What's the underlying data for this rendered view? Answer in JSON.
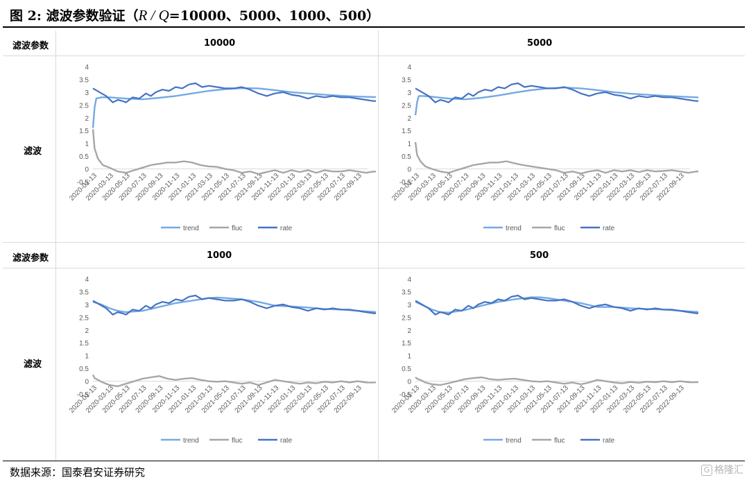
{
  "figure": {
    "title_prefix": "图 2:  滤波参数验证（",
    "title_rq": "R / Q",
    "title_suffix": "=10000、5000、1000、500）"
  },
  "table": {
    "param_label": "滤波参数",
    "row_label": "滤波"
  },
  "source": "数据来源：国泰君安证券研究",
  "watermark": "格隆汇",
  "colors": {
    "trend": "#74a9e1",
    "fluc": "#a6a6a6",
    "rate": "#4472c4",
    "axis": "#d9d9d9",
    "tick": "#595959"
  },
  "chart_data": [
    {
      "type": "line",
      "title": "10000",
      "yticks": [
        "4",
        "3.5",
        "3",
        "2.5",
        "2",
        "1.5",
        "1",
        "0.5",
        "0",
        "-0.5"
      ],
      "ylim": [
        -0.5,
        4
      ],
      "xticks": [
        "2020-01-13",
        "2020-03-13",
        "2020-05-13",
        "2020-07-13",
        "2020-09-13",
        "2020-11-13",
        "2021-01-13",
        "2021-03-13",
        "2021-05-13",
        "2021-07-13",
        "2021-09-13",
        "2021-11-13",
        "2022-01-13",
        "2022-03-13",
        "2022-05-13",
        "2022-07-13",
        "2022-09-13"
      ],
      "legend": [
        "trend",
        "fluc",
        "rate"
      ],
      "series": [
        {
          "name": "trend",
          "x": [
            0,
            0.1,
            0.2,
            0.5,
            1,
            2,
            3,
            4,
            5,
            6,
            7,
            8,
            9,
            10,
            11,
            12,
            13,
            14,
            15,
            16,
            17.6
          ],
          "y": [
            1.6,
            2.4,
            2.75,
            2.8,
            2.8,
            2.75,
            2.72,
            2.78,
            2.85,
            2.95,
            3.05,
            3.12,
            3.16,
            3.15,
            3.08,
            3.0,
            2.95,
            2.9,
            2.86,
            2.83,
            2.8
          ]
        },
        {
          "name": "fluc",
          "x": [
            0,
            0.1,
            0.3,
            0.6,
            1,
            1.5,
            2,
            2.5,
            3,
            3.5,
            4,
            4.5,
            5,
            5.5,
            6,
            6.5,
            7,
            7.5,
            8,
            8.5,
            9,
            9.5,
            10,
            10.5,
            11,
            11.5,
            12,
            12.5,
            13,
            13.5,
            14,
            14.5,
            15,
            15.5,
            16,
            16.5,
            17,
            17.6
          ],
          "y": [
            1.55,
            0.8,
            0.4,
            0.15,
            0.05,
            -0.1,
            -0.15,
            -0.05,
            0.05,
            0.15,
            0.2,
            0.25,
            0.25,
            0.3,
            0.25,
            0.15,
            0.1,
            0.08,
            0.0,
            -0.05,
            -0.15,
            -0.1,
            -0.2,
            -0.12,
            -0.05,
            -0.15,
            -0.05,
            -0.12,
            -0.05,
            -0.15,
            -0.05,
            -0.1,
            -0.1,
            -0.05,
            -0.1,
            -0.15,
            -0.1,
            -0.15
          ]
        },
        {
          "name": "rate",
          "x": [
            0,
            0.4,
            0.8,
            1.2,
            1.5,
            1.8,
            2,
            2.4,
            2.8,
            3.2,
            3.5,
            3.8,
            4.2,
            4.6,
            5,
            5.4,
            5.8,
            6.2,
            6.6,
            7,
            7.5,
            8,
            8.5,
            9,
            9.5,
            10,
            10.5,
            11,
            11.5,
            12,
            12.5,
            13,
            13.5,
            14,
            14.5,
            15,
            15.5,
            16,
            16.5,
            17,
            17.6
          ],
          "y": [
            3.15,
            3.0,
            2.85,
            2.6,
            2.7,
            2.65,
            2.6,
            2.8,
            2.75,
            2.95,
            2.85,
            3.0,
            3.1,
            3.05,
            3.2,
            3.15,
            3.3,
            3.35,
            3.2,
            3.25,
            3.2,
            3.15,
            3.15,
            3.2,
            3.1,
            2.95,
            2.85,
            2.95,
            3.0,
            2.9,
            2.85,
            2.75,
            2.85,
            2.8,
            2.85,
            2.8,
            2.8,
            2.75,
            2.7,
            2.65,
            2.7
          ]
        }
      ]
    },
    {
      "type": "line",
      "title": "5000",
      "yticks": [
        "4",
        "3.5",
        "3",
        "2.5",
        "2",
        "1.5",
        "1",
        "0.5",
        "0",
        "-0.5"
      ],
      "ylim": [
        -0.5,
        4
      ],
      "xticks": [
        "2020-01-13",
        "2020-03-13",
        "2020-05-13",
        "2020-07-13",
        "2020-09-13",
        "2020-11-13",
        "2021-01-13",
        "2021-03-13",
        "2021-05-13",
        "2021-07-13",
        "2021-09-13",
        "2021-11-13",
        "2022-01-13",
        "2022-03-13",
        "2022-05-13",
        "2022-07-13",
        "2022-09-13"
      ],
      "legend": [
        "trend",
        "fluc",
        "rate"
      ],
      "series": [
        {
          "name": "trend",
          "x": [
            0,
            0.1,
            0.2,
            0.5,
            1,
            2,
            3,
            4,
            5,
            6,
            7,
            8,
            9,
            10,
            11,
            12,
            13,
            14,
            15,
            16,
            17.6
          ],
          "y": [
            2.1,
            2.6,
            2.85,
            2.85,
            2.82,
            2.75,
            2.72,
            2.78,
            2.87,
            2.98,
            3.08,
            3.15,
            3.18,
            3.15,
            3.08,
            3.0,
            2.94,
            2.9,
            2.86,
            2.83,
            2.78
          ]
        },
        {
          "name": "fluc",
          "x": [
            0,
            0.1,
            0.3,
            0.6,
            1,
            1.5,
            2,
            2.5,
            3,
            3.5,
            4,
            4.5,
            5,
            5.5,
            6,
            6.5,
            7,
            7.5,
            8,
            8.5,
            9,
            9.5,
            10,
            10.5,
            11,
            11.5,
            12,
            12.5,
            13,
            13.5,
            14,
            14.5,
            15,
            15.5,
            16,
            16.5,
            17,
            17.6
          ],
          "y": [
            1.05,
            0.55,
            0.3,
            0.1,
            0.0,
            -0.1,
            -0.15,
            -0.05,
            0.05,
            0.15,
            0.2,
            0.25,
            0.25,
            0.3,
            0.22,
            0.15,
            0.1,
            0.05,
            0.0,
            -0.05,
            -0.15,
            -0.1,
            -0.18,
            -0.1,
            -0.05,
            -0.15,
            -0.05,
            -0.1,
            -0.05,
            -0.12,
            -0.05,
            -0.1,
            -0.08,
            -0.05,
            -0.1,
            -0.15,
            -0.1,
            -0.12
          ]
        },
        {
          "name": "rate",
          "x": [
            0,
            0.4,
            0.8,
            1.2,
            1.5,
            1.8,
            2,
            2.4,
            2.8,
            3.2,
            3.5,
            3.8,
            4.2,
            4.6,
            5,
            5.4,
            5.8,
            6.2,
            6.6,
            7,
            7.5,
            8,
            8.5,
            9,
            9.5,
            10,
            10.5,
            11,
            11.5,
            12,
            12.5,
            13,
            13.5,
            14,
            14.5,
            15,
            15.5,
            16,
            16.5,
            17,
            17.6
          ],
          "y": [
            3.15,
            3.0,
            2.85,
            2.6,
            2.7,
            2.65,
            2.6,
            2.8,
            2.75,
            2.95,
            2.85,
            3.0,
            3.1,
            3.05,
            3.2,
            3.15,
            3.3,
            3.35,
            3.2,
            3.25,
            3.2,
            3.15,
            3.15,
            3.2,
            3.1,
            2.95,
            2.85,
            2.95,
            3.0,
            2.9,
            2.85,
            2.75,
            2.85,
            2.8,
            2.85,
            2.8,
            2.8,
            2.75,
            2.7,
            2.65,
            2.7
          ]
        }
      ]
    },
    {
      "type": "line",
      "title": "1000",
      "yticks": [
        "4",
        "3.5",
        "3",
        "2.5",
        "2",
        "1.5",
        "1",
        "0.5",
        "0",
        "-0.5"
      ],
      "ylim": [
        -0.5,
        4
      ],
      "xticks": [
        "2020-01-13",
        "2020-03-13",
        "2020-05-13",
        "2020-07-13",
        "2020-09-13",
        "2020-11-13",
        "2021-01-13",
        "2021-03-13",
        "2021-05-13",
        "2021-07-13",
        "2021-09-13",
        "2021-11-13",
        "2022-01-13",
        "2022-03-13",
        "2022-05-13",
        "2022-07-13",
        "2022-09-13"
      ],
      "legend": [
        "trend",
        "fluc",
        "rate"
      ],
      "series": [
        {
          "name": "trend",
          "x": [
            0,
            0.5,
            1,
            1.5,
            2,
            3,
            4,
            5,
            6,
            7,
            7.5,
            8,
            9,
            10,
            11,
            12,
            13,
            14,
            15,
            16,
            17.6
          ],
          "y": [
            3.1,
            3.0,
            2.85,
            2.75,
            2.7,
            2.75,
            2.9,
            3.05,
            3.15,
            3.25,
            3.27,
            3.25,
            3.2,
            3.1,
            2.95,
            2.92,
            2.88,
            2.82,
            2.8,
            2.75,
            2.68
          ]
        },
        {
          "name": "fluc",
          "x": [
            0,
            0.1,
            0.3,
            0.6,
            1,
            1.5,
            2,
            2.5,
            3,
            3.5,
            4,
            4.5,
            5,
            5.5,
            6,
            6.5,
            7,
            7.5,
            8,
            8.5,
            9,
            9.5,
            10,
            10.5,
            11,
            11.5,
            12,
            12.5,
            13,
            13.5,
            14,
            14.5,
            15,
            15.5,
            16,
            16.5,
            17,
            17.6
          ],
          "y": [
            0.25,
            0.12,
            0.05,
            -0.05,
            -0.15,
            -0.2,
            -0.1,
            0.0,
            0.1,
            0.15,
            0.2,
            0.1,
            0.05,
            0.1,
            0.12,
            0.05,
            0.0,
            -0.02,
            0.0,
            -0.05,
            -0.1,
            -0.05,
            -0.15,
            -0.05,
            0.05,
            0.0,
            -0.05,
            -0.1,
            -0.05,
            -0.08,
            -0.02,
            -0.05,
            0.0,
            -0.05,
            0.0,
            -0.05,
            -0.05,
            0.0
          ]
        },
        {
          "name": "rate",
          "x": [
            0,
            0.4,
            0.8,
            1.2,
            1.5,
            1.8,
            2,
            2.4,
            2.8,
            3.2,
            3.5,
            3.8,
            4.2,
            4.6,
            5,
            5.4,
            5.8,
            6.2,
            6.6,
            7,
            7.5,
            8,
            8.5,
            9,
            9.5,
            10,
            10.5,
            11,
            11.5,
            12,
            12.5,
            13,
            13.5,
            14,
            14.5,
            15,
            15.5,
            16,
            16.5,
            17,
            17.6
          ],
          "y": [
            3.15,
            3.0,
            2.85,
            2.6,
            2.7,
            2.65,
            2.6,
            2.8,
            2.75,
            2.95,
            2.85,
            3.0,
            3.1,
            3.05,
            3.2,
            3.15,
            3.3,
            3.35,
            3.2,
            3.25,
            3.2,
            3.15,
            3.15,
            3.2,
            3.1,
            2.95,
            2.85,
            2.95,
            3.0,
            2.9,
            2.85,
            2.75,
            2.85,
            2.8,
            2.85,
            2.8,
            2.8,
            2.75,
            2.7,
            2.65,
            2.7
          ]
        }
      ]
    },
    {
      "type": "line",
      "title": "500",
      "yticks": [
        "4",
        "3.5",
        "3",
        "2.5",
        "2",
        "1.5",
        "1",
        "0.5",
        "0",
        "-0.5"
      ],
      "ylim": [
        -0.5,
        4
      ],
      "xticks": [
        "2020-01-13",
        "2020-03-13",
        "2020-05-13",
        "2020-07-13",
        "2020-09-13",
        "2020-11-13",
        "2021-01-13",
        "2021-03-13",
        "2021-05-13",
        "2021-07-13",
        "2021-09-13",
        "2021-11-13",
        "2022-01-13",
        "2022-03-13",
        "2022-05-13",
        "2022-07-13",
        "2022-09-13"
      ],
      "legend": [
        "trend",
        "fluc",
        "rate"
      ],
      "series": [
        {
          "name": "trend",
          "x": [
            0,
            0.5,
            1,
            1.5,
            2,
            3,
            4,
            5,
            6,
            7,
            7.5,
            8,
            9,
            10,
            11,
            12,
            13,
            14,
            15,
            16,
            17.6
          ],
          "y": [
            3.1,
            2.95,
            2.8,
            2.7,
            2.68,
            2.78,
            2.95,
            3.1,
            3.2,
            3.28,
            3.28,
            3.25,
            3.15,
            3.05,
            2.9,
            2.9,
            2.85,
            2.82,
            2.8,
            2.75,
            2.68
          ]
        },
        {
          "name": "fluc",
          "x": [
            0,
            0.1,
            0.3,
            0.6,
            1,
            1.5,
            2,
            2.5,
            3,
            3.5,
            4,
            4.5,
            5,
            5.5,
            6,
            6.5,
            7,
            7.5,
            8,
            8.5,
            9,
            9.5,
            10,
            10.5,
            11,
            11.5,
            12,
            12.5,
            13,
            13.5,
            14,
            14.5,
            15,
            15.5,
            16,
            16.5,
            17,
            17.6
          ],
          "y": [
            0.15,
            0.1,
            0.05,
            -0.05,
            -0.12,
            -0.15,
            -0.08,
            0.0,
            0.08,
            0.12,
            0.15,
            0.08,
            0.05,
            0.08,
            0.1,
            0.05,
            0.0,
            -0.02,
            0.0,
            -0.05,
            -0.1,
            -0.05,
            -0.12,
            -0.05,
            0.05,
            0.0,
            -0.05,
            -0.08,
            -0.03,
            -0.06,
            -0.02,
            -0.04,
            0.0,
            -0.04,
            0.0,
            -0.04,
            -0.04,
            0.0
          ]
        },
        {
          "name": "rate",
          "x": [
            0,
            0.4,
            0.8,
            1.2,
            1.5,
            1.8,
            2,
            2.4,
            2.8,
            3.2,
            3.5,
            3.8,
            4.2,
            4.6,
            5,
            5.4,
            5.8,
            6.2,
            6.6,
            7,
            7.5,
            8,
            8.5,
            9,
            9.5,
            10,
            10.5,
            11,
            11.5,
            12,
            12.5,
            13,
            13.5,
            14,
            14.5,
            15,
            15.5,
            16,
            16.5,
            17,
            17.6
          ],
          "y": [
            3.15,
            3.0,
            2.85,
            2.6,
            2.7,
            2.65,
            2.6,
            2.8,
            2.75,
            2.95,
            2.85,
            3.0,
            3.1,
            3.05,
            3.2,
            3.15,
            3.3,
            3.35,
            3.2,
            3.25,
            3.2,
            3.15,
            3.15,
            3.2,
            3.1,
            2.95,
            2.85,
            2.95,
            3.0,
            2.9,
            2.85,
            2.75,
            2.85,
            2.8,
            2.85,
            2.8,
            2.8,
            2.75,
            2.7,
            2.65,
            2.7
          ]
        }
      ]
    }
  ]
}
